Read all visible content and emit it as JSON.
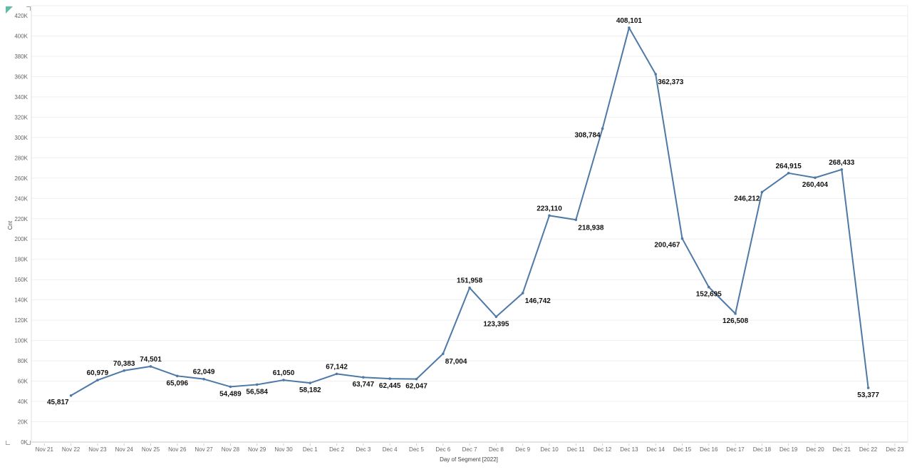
{
  "chart_data": {
    "type": "line",
    "xlabel": "Day of Segment [2022]",
    "ylabel": "Cnt",
    "x_ticks": [
      "Nov 21",
      "Nov 22",
      "Nov 23",
      "Nov 24",
      "Nov 25",
      "Nov 26",
      "Nov 27",
      "Nov 28",
      "Nov 29",
      "Nov 30",
      "Dec 1",
      "Dec 2",
      "Dec 3",
      "Dec 4",
      "Dec 5",
      "Dec 6",
      "Dec 7",
      "Dec 8",
      "Dec 9",
      "Dec 10",
      "Dec 11",
      "Dec 12",
      "Dec 13",
      "Dec 14",
      "Dec 15",
      "Dec 16",
      "Dec 17",
      "Dec 18",
      "Dec 19",
      "Dec 20",
      "Dec 21",
      "Dec 22",
      "Dec 23"
    ],
    "y_ticks": [
      "0K",
      "20K",
      "40K",
      "60K",
      "80K",
      "100K",
      "120K",
      "140K",
      "160K",
      "180K",
      "200K",
      "220K",
      "240K",
      "260K",
      "280K",
      "300K",
      "320K",
      "340K",
      "360K",
      "380K",
      "400K",
      "420K"
    ],
    "ylim": [
      0,
      420000
    ],
    "grid": true,
    "series": [
      {
        "color": "#4e79a7",
        "points": [
          {
            "x": "Nov 22",
            "y": 45817,
            "label": "45,817"
          },
          {
            "x": "Nov 23",
            "y": 60979,
            "label": "60,979"
          },
          {
            "x": "Nov 24",
            "y": 70383,
            "label": "70,383"
          },
          {
            "x": "Nov 25",
            "y": 74501,
            "label": "74,501"
          },
          {
            "x": "Nov 26",
            "y": 65096,
            "label": "65,096"
          },
          {
            "x": "Nov 27",
            "y": 62049,
            "label": "62,049"
          },
          {
            "x": "Nov 28",
            "y": 54489,
            "label": "54,489"
          },
          {
            "x": "Nov 29",
            "y": 56584,
            "label": "56,584"
          },
          {
            "x": "Nov 30",
            "y": 61050,
            "label": "61,050"
          },
          {
            "x": "Dec 1",
            "y": 58182,
            "label": "58,182"
          },
          {
            "x": "Dec 2",
            "y": 67142,
            "label": "67,142"
          },
          {
            "x": "Dec 3",
            "y": 63747,
            "label": "63,747"
          },
          {
            "x": "Dec 4",
            "y": 62445,
            "label": "62,445"
          },
          {
            "x": "Dec 5",
            "y": 62047,
            "label": "62,047"
          },
          {
            "x": "Dec 6",
            "y": 87004,
            "label": "87,004"
          },
          {
            "x": "Dec 7",
            "y": 151958,
            "label": "151,958"
          },
          {
            "x": "Dec 8",
            "y": 123395,
            "label": "123,395"
          },
          {
            "x": "Dec 9",
            "y": 146742,
            "label": "146,742"
          },
          {
            "x": "Dec 10",
            "y": 223110,
            "label": "223,110"
          },
          {
            "x": "Dec 11",
            "y": 218938,
            "label": "218,938"
          },
          {
            "x": "Dec 12",
            "y": 308784,
            "label": "308,784"
          },
          {
            "x": "Dec 13",
            "y": 408101,
            "label": "408,101"
          },
          {
            "x": "Dec 14",
            "y": 362373,
            "label": "362,373"
          },
          {
            "x": "Dec 15",
            "y": 200467,
            "label": "200,467"
          },
          {
            "x": "Dec 16",
            "y": 152695,
            "label": "152,695"
          },
          {
            "x": "Dec 17",
            "y": 126508,
            "label": "126,508"
          },
          {
            "x": "Dec 18",
            "y": 246212,
            "label": "246,212"
          },
          {
            "x": "Dec 19",
            "y": 264915,
            "label": "264,915"
          },
          {
            "x": "Dec 20",
            "y": 260404,
            "label": "260,404"
          },
          {
            "x": "Dec 21",
            "y": 268433,
            "label": "268,433"
          },
          {
            "x": "Dec 22",
            "y": 53377,
            "label": "53,377"
          }
        ]
      }
    ]
  }
}
